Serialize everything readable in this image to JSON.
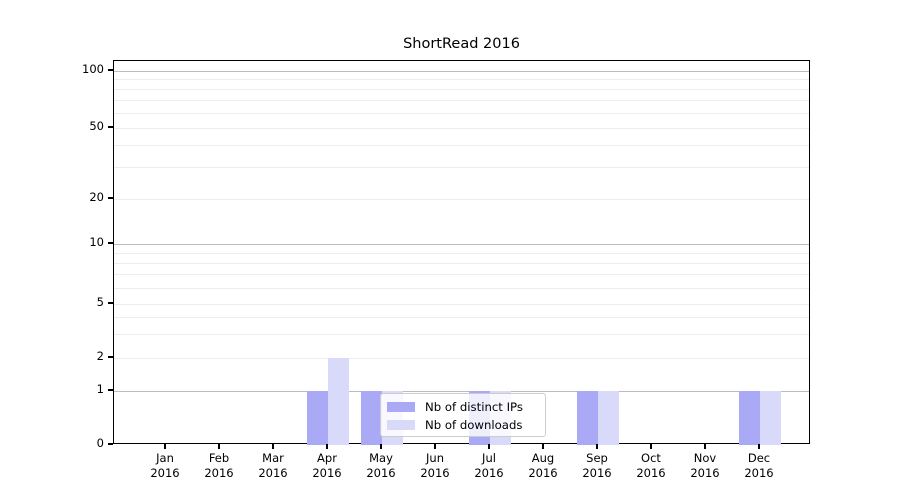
{
  "title": "ShortRead 2016",
  "chart_data": {
    "type": "bar",
    "title": "ShortRead 2016",
    "xlabel": "",
    "ylabel": "",
    "categories": [
      "Jan 2016",
      "Feb 2016",
      "Mar 2016",
      "Apr 2016",
      "May 2016",
      "Jun 2016",
      "Jul 2016",
      "Aug 2016",
      "Sep 2016",
      "Oct 2016",
      "Nov 2016",
      "Dec 2016"
    ],
    "series": [
      {
        "name": "Nb of distinct IPs",
        "color": "#a9a9f5",
        "values": [
          0,
          0,
          0,
          1,
          1,
          0,
          1,
          0,
          1,
          0,
          0,
          1
        ]
      },
      {
        "name": "Nb of downloads",
        "color": "#d9d9fa",
        "values": [
          0,
          0,
          0,
          2,
          1,
          0,
          1,
          0,
          1,
          0,
          0,
          1
        ]
      }
    ],
    "yscale": "symlog",
    "yticks": [
      0,
      1,
      2,
      5,
      10,
      20,
      50,
      100
    ],
    "minor_grid_values": [
      2,
      3,
      4,
      5,
      6,
      7,
      8,
      9,
      20,
      30,
      40,
      50,
      60,
      70,
      80,
      90
    ],
    "major_grid_values": [
      1,
      10,
      100
    ],
    "ylim": [
      0,
      120
    ],
    "grid": "on",
    "legend_position": "lower center"
  }
}
